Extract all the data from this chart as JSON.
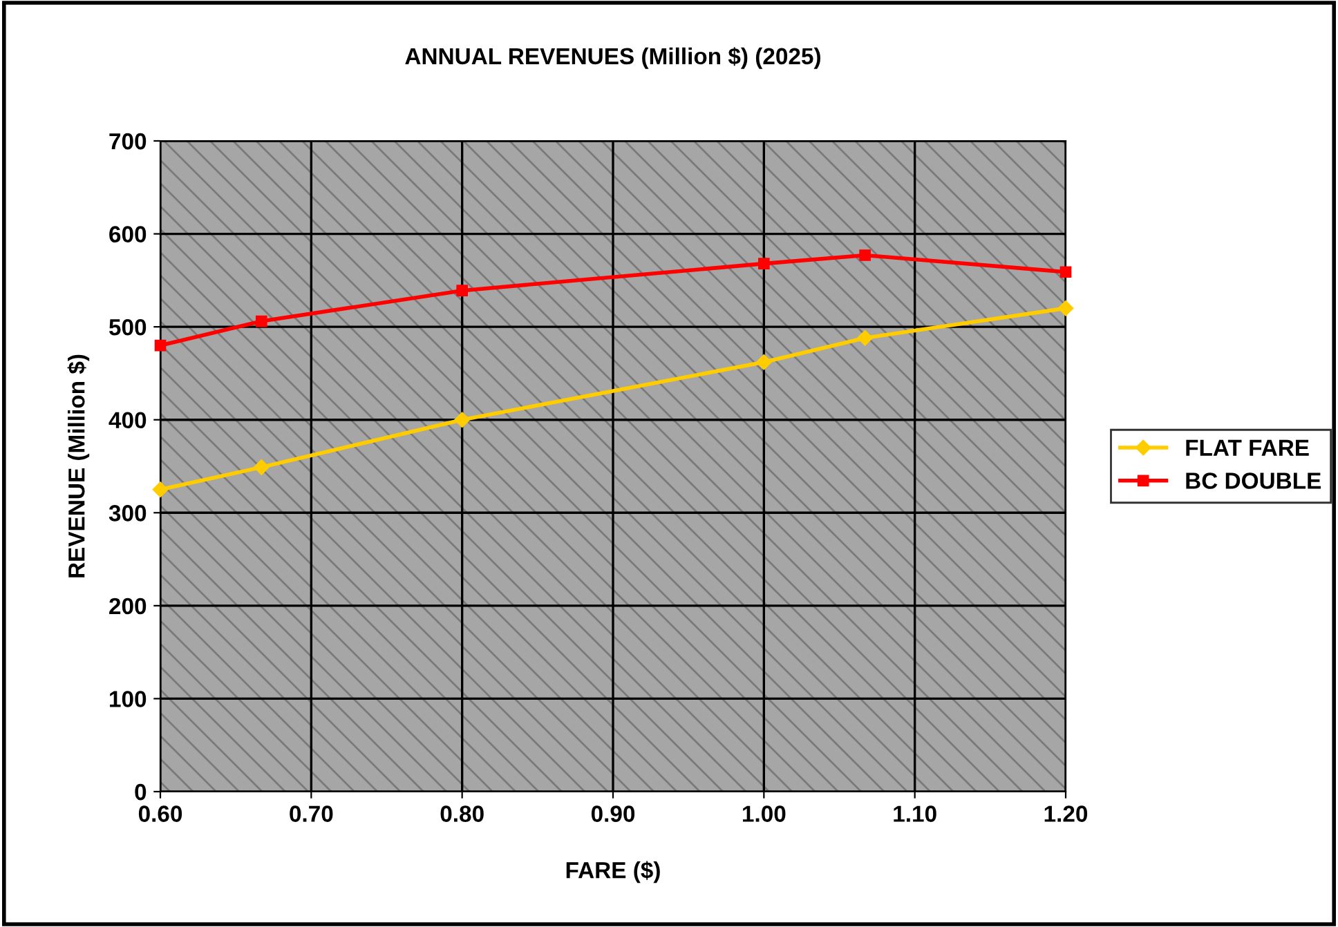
{
  "chart_data": {
    "type": "line",
    "title": "ANNUAL REVENUES (Million $) (2025)",
    "xlabel": "FARE ($)",
    "ylabel": "REVENUE (Million $)",
    "x": [
      0.6,
      0.667,
      0.8,
      1.0,
      1.067,
      1.2
    ],
    "series": [
      {
        "name": "FLAT FARE",
        "color": "#ffcc00",
        "marker": "diamond",
        "values": [
          325,
          349,
          400,
          462,
          488,
          520
        ]
      },
      {
        "name": "BC DOUBLE",
        "color": "#ff0000",
        "marker": "square",
        "values": [
          480,
          506,
          539,
          568,
          577,
          559
        ]
      }
    ],
    "xlim": [
      0.6,
      1.2
    ],
    "xticks": [
      {
        "value": 0.6,
        "label": "0.60"
      },
      {
        "value": 0.7,
        "label": "0.70"
      },
      {
        "value": 0.8,
        "label": "0.80"
      },
      {
        "value": 0.9,
        "label": "0.90"
      },
      {
        "value": 1.0,
        "label": "1.00"
      },
      {
        "value": 1.1,
        "label": "1.10"
      },
      {
        "value": 1.2,
        "label": "1.20"
      }
    ],
    "ylim": [
      0,
      700
    ],
    "yticks": [
      0,
      100,
      200,
      300,
      400,
      500,
      600,
      700
    ],
    "grid": true,
    "legend": "right",
    "line_style": "solid"
  }
}
